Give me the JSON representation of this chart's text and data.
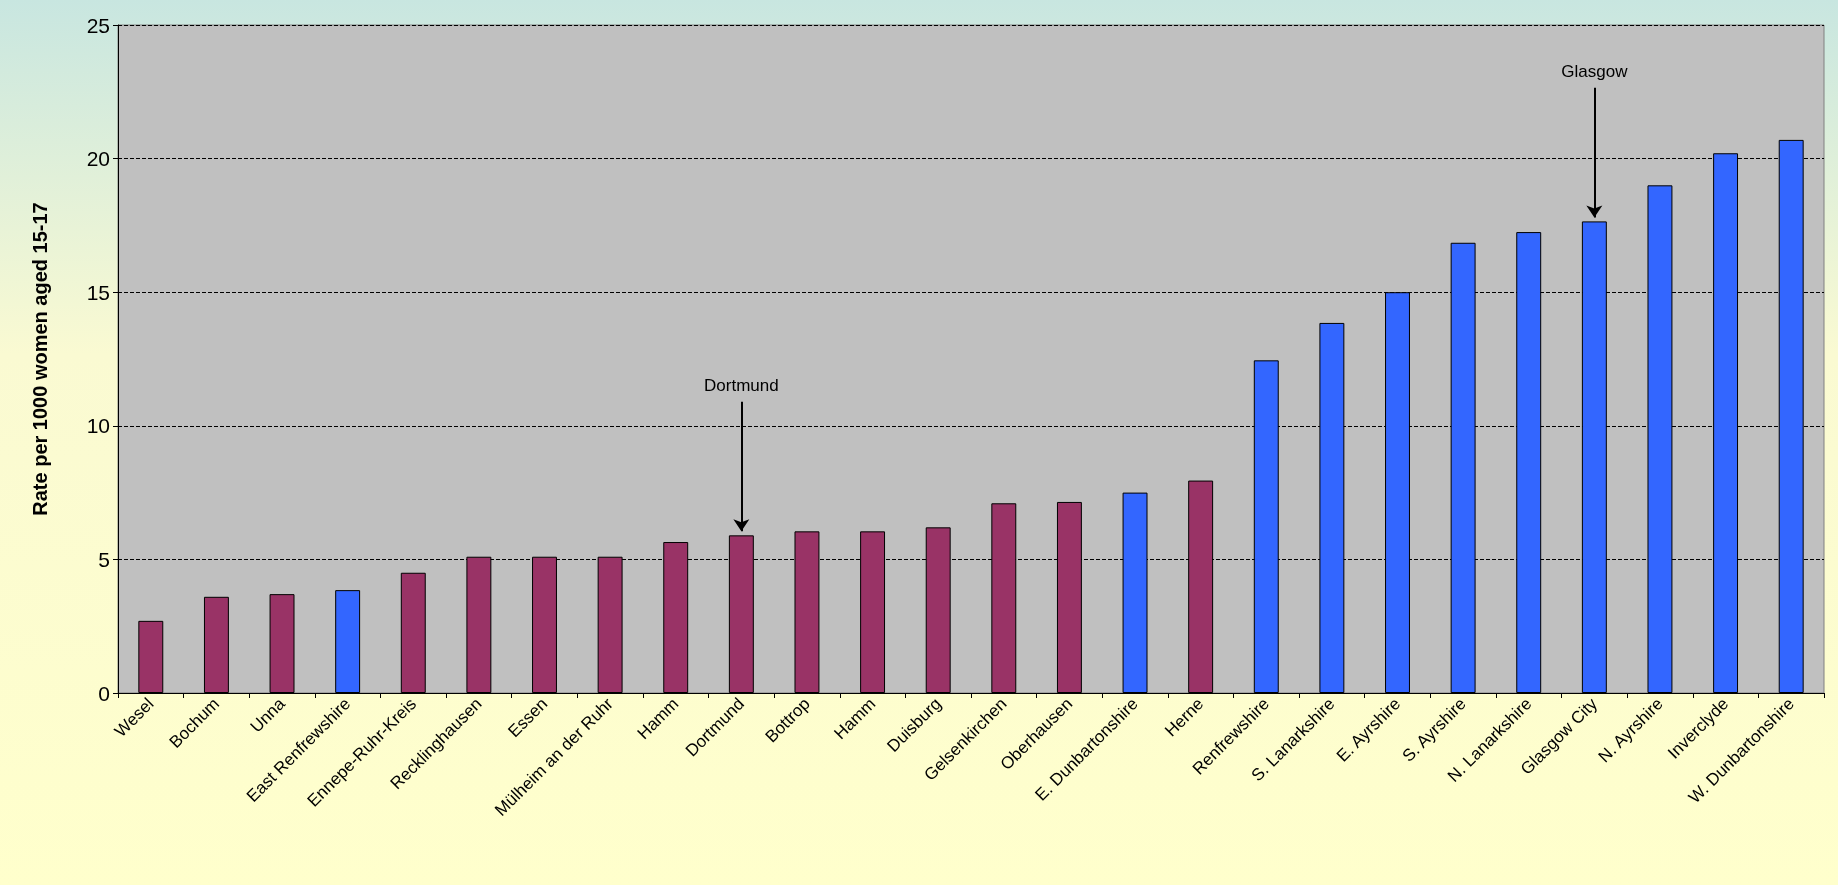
{
  "chart_data": {
    "type": "bar",
    "ylabel": "Rate per 1000 women aged 15-17",
    "categories": [
      "Wesel",
      "Bochum",
      "Unna",
      "East Renfrewshire",
      "Ennepe-Ruhr-Kreis",
      "Recklinghausen",
      "Essen",
      "Mülheim an der Ruhr",
      "Hamm",
      "Dortmund",
      "Bottrop",
      "Hamm",
      "Duisburg",
      "Gelsenkirchen",
      "Oberhausen",
      "E. Dunbartonshire",
      "Herne",
      "Renfrewshire",
      "S. Lanarkshire",
      "E. Ayrshire",
      "S. Ayrshire",
      "N. Lanarkshire",
      "Glasgow City",
      "N. Ayrshire",
      "Inverclyde",
      "W. Dunbartonshire"
    ],
    "values": [
      2.7,
      3.6,
      3.7,
      3.85,
      4.5,
      5.1,
      5.1,
      5.1,
      5.65,
      5.9,
      6.05,
      6.05,
      6.2,
      7.1,
      7.15,
      7.5,
      7.95,
      12.45,
      13.85,
      15.0,
      16.85,
      17.25,
      17.65,
      19.0,
      20.2,
      20.7
    ],
    "colors": [
      "#993366",
      "#993366",
      "#993366",
      "#3366ff",
      "#993366",
      "#993366",
      "#993366",
      "#993366",
      "#993366",
      "#993366",
      "#993366",
      "#993366",
      "#993366",
      "#993366",
      "#993366",
      "#3366ff",
      "#993366",
      "#3366ff",
      "#3366ff",
      "#3366ff",
      "#3366ff",
      "#3366ff",
      "#3366ff",
      "#3366ff",
      "#3366ff",
      "#3366ff"
    ],
    "ylim": [
      0,
      25
    ],
    "yticks": [
      0,
      5,
      10,
      15,
      20,
      25
    ],
    "grid": "y",
    "annotations": [
      {
        "text": "Dortmund",
        "x": "Dortmund",
        "y": 5.9
      },
      {
        "text": "Glasgow",
        "x": "Glasgow City",
        "y": 17.65
      }
    ]
  }
}
